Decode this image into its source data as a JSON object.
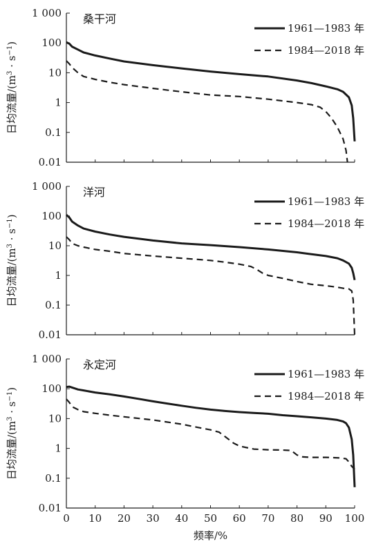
{
  "chart_data": [
    {
      "type": "line",
      "title": "桑干河",
      "ylabel_main": "日均流量/(m",
      "ylabel_sup1": "3",
      "ylabel_mid": " · s",
      "ylabel_sup2": "−1",
      "ylabel_end": ")",
      "xlabel": "",
      "xlim": [
        0,
        100
      ],
      "ylim": [
        0.01,
        1000
      ],
      "yscale": "log",
      "x_ticks": [],
      "y_ticks": [
        {
          "v": 1000,
          "t": "1 000"
        },
        {
          "v": 100,
          "t": "100"
        },
        {
          "v": 10,
          "t": "10"
        },
        {
          "v": 1,
          "t": "1"
        },
        {
          "v": 0.1,
          "t": "0.1"
        },
        {
          "v": 0.01,
          "t": "0.01"
        }
      ],
      "legend_position": "top-right",
      "series": [
        {
          "name": "1961—1983 年",
          "style": "solid",
          "points": [
            [
              0,
              105
            ],
            [
              1,
              95
            ],
            [
              2,
              75
            ],
            [
              4,
              60
            ],
            [
              6,
              48
            ],
            [
              10,
              38
            ],
            [
              15,
              30
            ],
            [
              20,
              24
            ],
            [
              30,
              18
            ],
            [
              40,
              14
            ],
            [
              50,
              11
            ],
            [
              60,
              9
            ],
            [
              70,
              7.5
            ],
            [
              80,
              5.5
            ],
            [
              85,
              4.5
            ],
            [
              90,
              3.5
            ],
            [
              94,
              2.8
            ],
            [
              96,
              2.3
            ],
            [
              98,
              1.5
            ],
            [
              99,
              0.8
            ],
            [
              99.5,
              0.3
            ],
            [
              100,
              0.05
            ]
          ]
        },
        {
          "name": "1984—2018 年",
          "style": "dashed",
          "points": [
            [
              0,
              25
            ],
            [
              1,
              20
            ],
            [
              2,
              15
            ],
            [
              4,
              10
            ],
            [
              6,
              7.5
            ],
            [
              10,
              6
            ],
            [
              15,
              4.8
            ],
            [
              20,
              4
            ],
            [
              30,
              3
            ],
            [
              40,
              2.3
            ],
            [
              50,
              1.8
            ],
            [
              60,
              1.6
            ],
            [
              70,
              1.3
            ],
            [
              80,
              1
            ],
            [
              85,
              0.85
            ],
            [
              88,
              0.7
            ],
            [
              90,
              0.5
            ],
            [
              92,
              0.3
            ],
            [
              94,
              0.15
            ],
            [
              96,
              0.06
            ],
            [
              97,
              0.025
            ],
            [
              97.5,
              0.01
            ]
          ]
        }
      ]
    },
    {
      "type": "line",
      "title": "洋河",
      "ylabel_main": "日均流量/(m",
      "ylabel_sup1": "3",
      "ylabel_mid": " · s",
      "ylabel_sup2": "−1",
      "ylabel_end": ")",
      "xlabel": "",
      "xlim": [
        0,
        100
      ],
      "ylim": [
        0.01,
        1000
      ],
      "yscale": "log",
      "x_ticks": [],
      "y_ticks": [
        {
          "v": 1000,
          "t": "1 000"
        },
        {
          "v": 100,
          "t": "100"
        },
        {
          "v": 10,
          "t": "10"
        },
        {
          "v": 1,
          "t": "1"
        },
        {
          "v": 0.1,
          "t": "0.1"
        },
        {
          "v": 0.01,
          "t": "0.01"
        }
      ],
      "legend_position": "top-right",
      "series": [
        {
          "name": "1961—1983 年",
          "style": "solid",
          "points": [
            [
              0,
              110
            ],
            [
              1,
              90
            ],
            [
              2,
              65
            ],
            [
              4,
              48
            ],
            [
              6,
              38
            ],
            [
              10,
              30
            ],
            [
              15,
              24
            ],
            [
              20,
              20
            ],
            [
              30,
              15
            ],
            [
              40,
              12
            ],
            [
              50,
              10.5
            ],
            [
              60,
              9
            ],
            [
              70,
              7.5
            ],
            [
              80,
              6
            ],
            [
              85,
              5.2
            ],
            [
              90,
              4.5
            ],
            [
              94,
              3.8
            ],
            [
              96,
              3.2
            ],
            [
              98,
              2.5
            ],
            [
              99,
              1.8
            ],
            [
              99.5,
              1.2
            ],
            [
              100,
              0.7
            ]
          ]
        },
        {
          "name": "1984—2018 年",
          "style": "dashed",
          "points": [
            [
              0,
              20
            ],
            [
              1,
              16
            ],
            [
              2,
              12
            ],
            [
              4,
              10
            ],
            [
              6,
              9
            ],
            [
              10,
              7.5
            ],
            [
              15,
              6.5
            ],
            [
              20,
              5.5
            ],
            [
              30,
              4.5
            ],
            [
              40,
              3.8
            ],
            [
              50,
              3.2
            ],
            [
              55,
              2.8
            ],
            [
              60,
              2.4
            ],
            [
              64,
              2
            ],
            [
              66,
              1.6
            ],
            [
              68,
              1.2
            ],
            [
              70,
              1
            ],
            [
              75,
              0.8
            ],
            [
              80,
              0.62
            ],
            [
              85,
              0.5
            ],
            [
              90,
              0.45
            ],
            [
              94,
              0.4
            ],
            [
              96,
              0.37
            ],
            [
              98,
              0.35
            ],
            [
              99,
              0.3
            ],
            [
              99.5,
              0.15
            ],
            [
              100,
              0.01
            ]
          ]
        }
      ]
    },
    {
      "type": "line",
      "title": "永定河",
      "ylabel_main": "日均流量/(m",
      "ylabel_sup1": "3",
      "ylabel_mid": " · s",
      "ylabel_sup2": "−1",
      "ylabel_end": ")",
      "xlabel": "频率/%",
      "xlim": [
        0,
        100
      ],
      "ylim": [
        0.01,
        1000
      ],
      "yscale": "log",
      "x_ticks": [
        0,
        10,
        20,
        30,
        40,
        50,
        60,
        70,
        80,
        90,
        100
      ],
      "y_ticks": [
        {
          "v": 1000,
          "t": "1 000"
        },
        {
          "v": 100,
          "t": "100"
        },
        {
          "v": 10,
          "t": "10"
        },
        {
          "v": 1,
          "t": "1"
        },
        {
          "v": 0.1,
          "t": "0.1"
        },
        {
          "v": 0.01,
          "t": "0.01"
        }
      ],
      "legend_position": "top-right",
      "series": [
        {
          "name": "1961—1983 年",
          "style": "solid",
          "points": [
            [
              0,
              115
            ],
            [
              1,
              118
            ],
            [
              2,
              110
            ],
            [
              4,
              95
            ],
            [
              6,
              88
            ],
            [
              10,
              75
            ],
            [
              15,
              65
            ],
            [
              20,
              55
            ],
            [
              25,
              46
            ],
            [
              30,
              38
            ],
            [
              35,
              32
            ],
            [
              40,
              27
            ],
            [
              45,
              23
            ],
            [
              50,
              20
            ],
            [
              55,
              18
            ],
            [
              60,
              16.5
            ],
            [
              65,
              15.5
            ],
            [
              70,
              14.5
            ],
            [
              75,
              13
            ],
            [
              80,
              12
            ],
            [
              85,
              11
            ],
            [
              90,
              10
            ],
            [
              94,
              9
            ],
            [
              96,
              8
            ],
            [
              97,
              7
            ],
            [
              98,
              5
            ],
            [
              99,
              2
            ],
            [
              99.5,
              0.6
            ],
            [
              100,
              0.05
            ]
          ]
        },
        {
          "name": "1984—2018 年",
          "style": "dashed",
          "points": [
            [
              0,
              45
            ],
            [
              1,
              35
            ],
            [
              2,
              25
            ],
            [
              4,
              20
            ],
            [
              6,
              17
            ],
            [
              10,
              15
            ],
            [
              15,
              13
            ],
            [
              20,
              11.5
            ],
            [
              30,
              9
            ],
            [
              40,
              6.5
            ],
            [
              45,
              5.2
            ],
            [
              50,
              4.2
            ],
            [
              53,
              3.5
            ],
            [
              55,
              2.5
            ],
            [
              58,
              1.5
            ],
            [
              60,
              1.2
            ],
            [
              65,
              0.95
            ],
            [
              70,
              0.9
            ],
            [
              75,
              0.88
            ],
            [
              78,
              0.85
            ],
            [
              80,
              0.6
            ],
            [
              82,
              0.52
            ],
            [
              85,
              0.5
            ],
            [
              90,
              0.5
            ],
            [
              95,
              0.48
            ],
            [
              97,
              0.45
            ],
            [
              98,
              0.35
            ],
            [
              99,
              0.25
            ],
            [
              100,
              0.2
            ]
          ]
        }
      ]
    }
  ]
}
